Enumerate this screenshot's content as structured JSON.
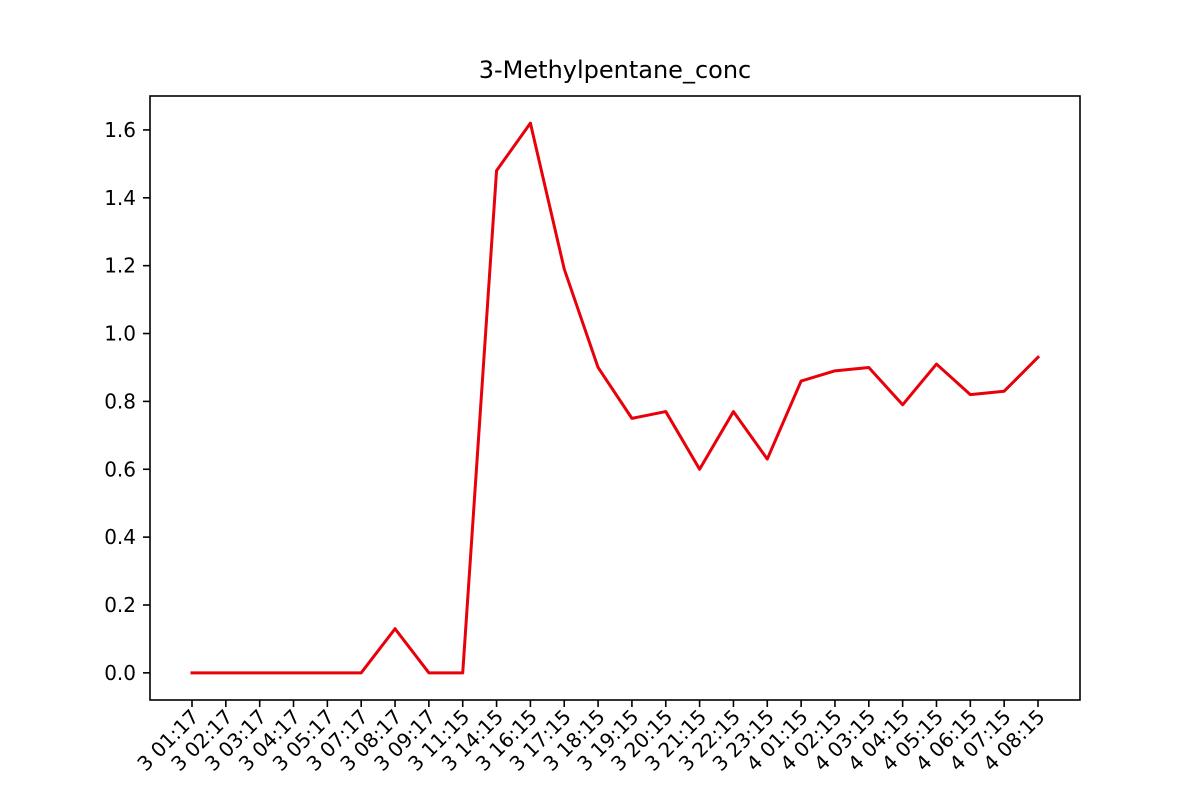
{
  "chart_data": {
    "type": "line",
    "title": "3-Methylpentane_conc",
    "xlabel": "",
    "ylabel": "",
    "ylim": [
      -0.08,
      1.7
    ],
    "yticks": [
      0.0,
      0.2,
      0.4,
      0.6,
      0.8,
      1.0,
      1.2,
      1.4,
      1.6
    ],
    "ytick_labels": [
      "0.0",
      "0.2",
      "0.4",
      "0.6",
      "0.8",
      "1.0",
      "1.2",
      "1.4",
      "1.6"
    ],
    "grid": false,
    "line_color": "#e8000b",
    "categories": [
      "3 01:17",
      "3 02:17",
      "3 03:17",
      "3 04:17",
      "3 05:17",
      "3 07:17",
      "3 08:17",
      "3 09:17",
      "3 11:15",
      "3 14:15",
      "3 16:15",
      "3 17:15",
      "3 18:15",
      "3 19:15",
      "3 20:15",
      "3 21:15",
      "3 22:15",
      "3 23:15",
      "4 01:15",
      "4 02:15",
      "4 03:15",
      "4 04:15",
      "4 05:15",
      "4 06:15",
      "4 07:15",
      "4 08:15"
    ],
    "values": [
      0.0,
      0.0,
      0.0,
      0.0,
      0.0,
      0.0,
      0.13,
      0.0,
      0.0,
      1.48,
      1.62,
      1.19,
      0.9,
      0.75,
      0.77,
      0.6,
      0.77,
      0.63,
      0.86,
      0.89,
      0.9,
      0.79,
      0.91,
      0.82,
      0.83,
      0.93
    ]
  }
}
